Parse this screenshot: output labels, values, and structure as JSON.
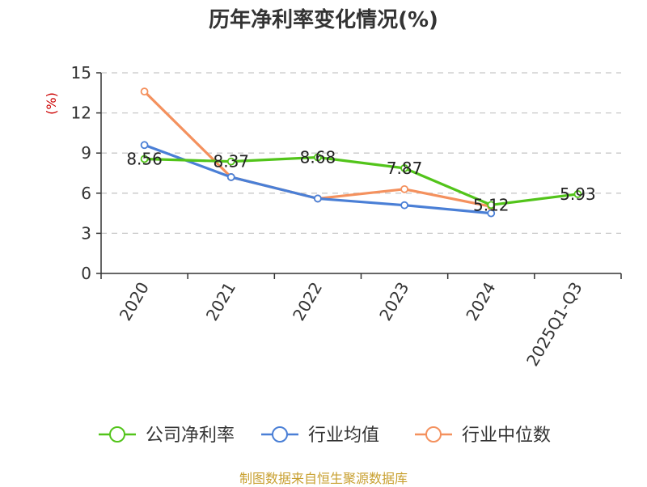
{
  "chart_data": {
    "type": "line",
    "title": "历年净利率变化情况(%)",
    "ylabel": "(%)",
    "xlabel": "",
    "categories": [
      "2020",
      "2021",
      "2022",
      "2023",
      "2024",
      "2025Q1-Q3"
    ],
    "ylim": [
      0,
      15
    ],
    "yticks": [
      0,
      3,
      6,
      9,
      12,
      15
    ],
    "grid": true,
    "legend_position": "bottom",
    "series": [
      {
        "name": "公司净利率",
        "color": "#52c41a",
        "values": [
          8.56,
          8.37,
          8.68,
          7.87,
          5.12,
          5.93
        ],
        "labels": [
          "8.56",
          "8.37",
          "8.68",
          "7.87",
          "5.12",
          "5.93"
        ]
      },
      {
        "name": "行业均值",
        "color": "#4a7fd6",
        "values": [
          9.6,
          7.2,
          5.6,
          5.1,
          4.5,
          null
        ]
      },
      {
        "name": "行业中位数",
        "color": "#f4915e",
        "values": [
          13.6,
          7.2,
          5.6,
          6.3,
          5.0,
          null
        ]
      }
    ]
  },
  "source_text": "制图数据来自恒生聚源数据库"
}
